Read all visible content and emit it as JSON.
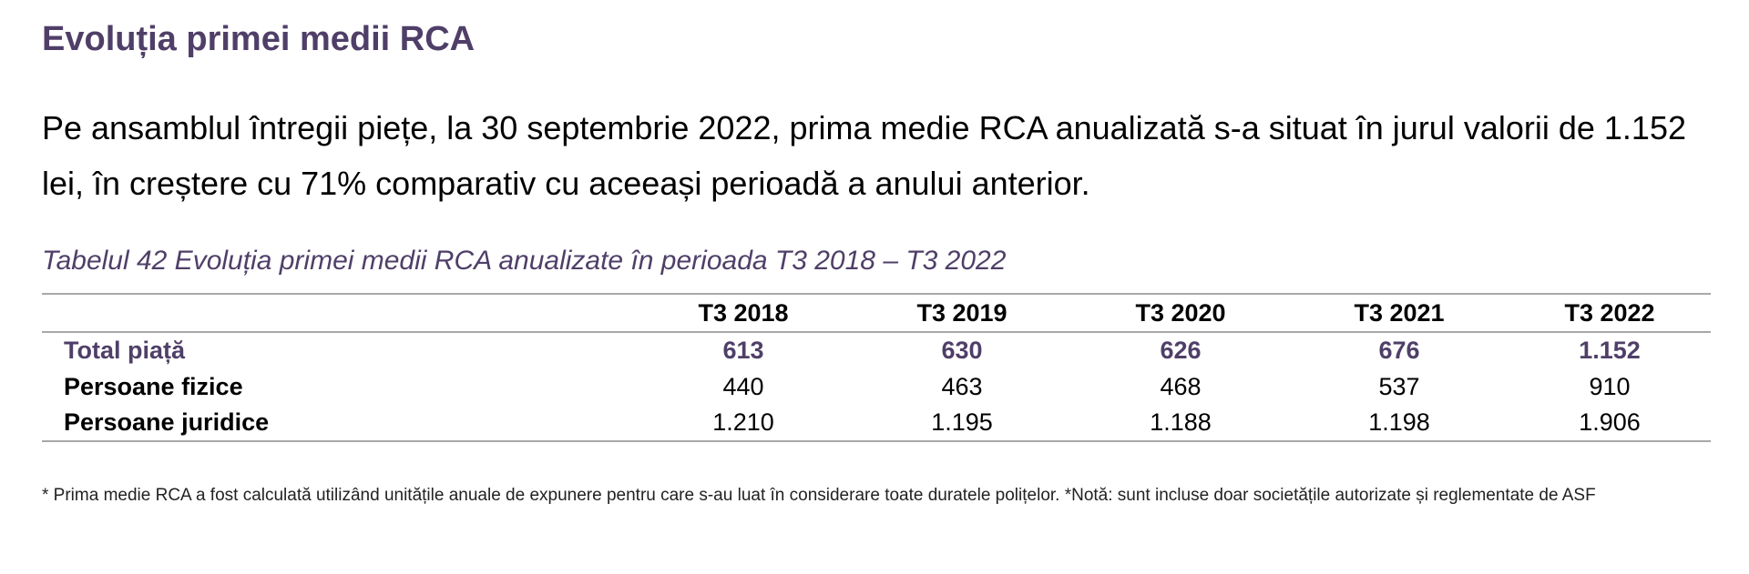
{
  "heading": "Evoluția primei medii RCA",
  "intro": "Pe ansamblul întregii piețe, la 30 septembrie 2022, prima medie RCA anualizată s-a situat în jurul valorii de 1.152 lei, în creștere cu 71% comparativ cu aceeași perioadă a anului anterior.",
  "caption": "Tabelul 42 Evoluția primei medii RCA anualizate în perioada T3 2018 – T3 2022",
  "table": {
    "columns": [
      "T3 2018",
      "T3 2019",
      "T3 2020",
      "T3 2021",
      "T3 2022"
    ],
    "rows": [
      {
        "label": "Total piață",
        "values": [
          "613",
          "630",
          "626",
          "676",
          "1.152"
        ]
      },
      {
        "label": "Persoane fizice",
        "values": [
          "440",
          "463",
          "468",
          "537",
          "910"
        ]
      },
      {
        "label": "Persoane juridice",
        "values": [
          "1.210",
          "1.195",
          "1.188",
          "1.198",
          "1.906"
        ]
      }
    ]
  },
  "footnote": "* Prima medie RCA a fost calculată utilizând unitățile anuale de expunere pentru care s-au luat în considerare toate duratele polițelor. *Notă: sunt incluse doar societățile autorizate și reglementate de ASF",
  "colors": {
    "accent": "#4f3f68",
    "rule": "#a8a8a8"
  }
}
